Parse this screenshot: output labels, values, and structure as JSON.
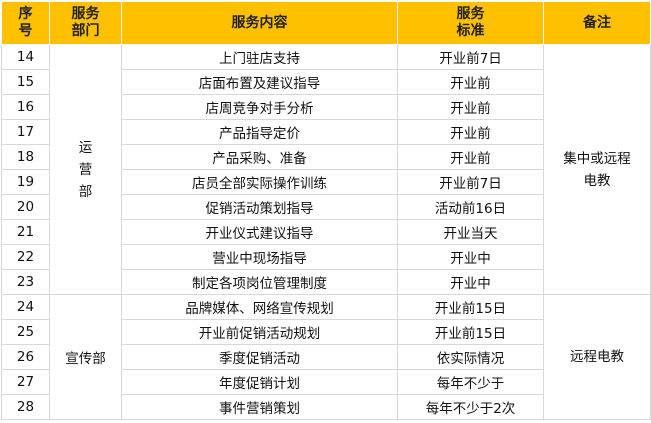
{
  "header": [
    [
      "序",
      "号"
    ],
    [
      "服务",
      "部门"
    ],
    [
      "服务内容"
    ],
    [
      "服务",
      "标准"
    ],
    [
      "备注"
    ]
  ],
  "groups": [
    {
      "department": "运营部",
      "remark": "集中或远程电教",
      "rows": [
        {
          "no": 14,
          "item": "上门驻店支持",
          "standard": "开业前7日"
        },
        {
          "no": 15,
          "item": "店面布置及建议指导",
          "standard": "开业前"
        },
        {
          "no": 16,
          "item": "店周竞争对手分析",
          "standard": "开业前"
        },
        {
          "no": 17,
          "item": "产品指导定价",
          "standard": "开业前"
        },
        {
          "no": 18,
          "item": "产品采购、准备",
          "standard": "开业前"
        },
        {
          "no": 19,
          "item": "店员全部实际操作训练",
          "standard": "开业前7日"
        },
        {
          "no": 20,
          "item": "促销活动策划指导",
          "standard": "活动前16日"
        },
        {
          "no": 21,
          "item": "开业仪式建议指导",
          "standard": "开业当天"
        },
        {
          "no": 22,
          "item": "营业中现场指导",
          "standard": "开业中"
        },
        {
          "no": 23,
          "item": "制定各项岗位管理制度",
          "standard": "开业中"
        }
      ]
    },
    {
      "department": "宣传部",
      "remark": "远程电教",
      "rows": [
        {
          "no": 24,
          "item": "品牌媒体、网络宣传规划",
          "standard": "开业前15日"
        },
        {
          "no": 25,
          "item": "开业前促销活动规划",
          "standard": "开业前15日"
        },
        {
          "no": 26,
          "item": "季度促销活动",
          "standard": "依实际情况"
        },
        {
          "no": 27,
          "item": "年度促销计划",
          "standard": "每年不少于"
        },
        {
          "no": 28,
          "item": "事件营销策划",
          "standard": "每年不少于2次"
        }
      ]
    }
  ]
}
